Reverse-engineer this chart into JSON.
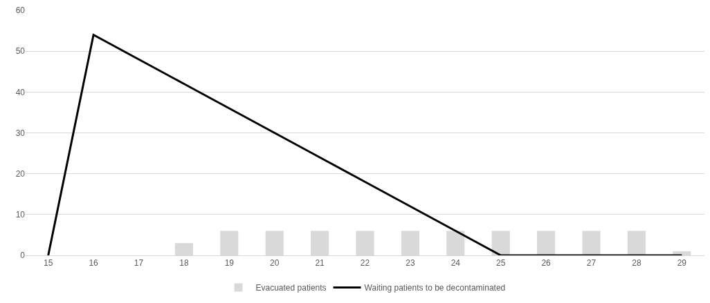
{
  "chart_data": {
    "type": "bar",
    "categories": [
      "15",
      "16",
      "17",
      "18",
      "19",
      "20",
      "21",
      "22",
      "23",
      "24",
      "25",
      "26",
      "27",
      "28",
      "29"
    ],
    "series": [
      {
        "name": "Evacuated patients",
        "color": "#d9d9d9",
        "values": [
          0,
          0,
          0,
          3,
          6,
          6,
          6,
          6,
          6,
          6,
          6,
          6,
          6,
          6,
          1
        ]
      },
      {
        "name": "Waiting patients to be decontaminated",
        "type": "line",
        "color": "#000000",
        "values": [
          0,
          54,
          48,
          42,
          36,
          30,
          24,
          18,
          12,
          6,
          0,
          0,
          0,
          0,
          0
        ]
      }
    ],
    "ylim": [
      0,
      60
    ],
    "yticks": [
      0,
      10,
      20,
      30,
      40,
      50,
      60
    ],
    "grid": "y",
    "legend": "bottom"
  }
}
